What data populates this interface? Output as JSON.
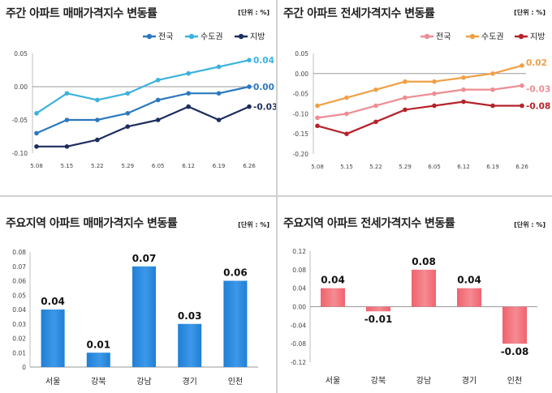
{
  "chart_data": [
    {
      "type": "line",
      "title": "주간 아파트 매매가격지수 변동률",
      "unit": "[단위 : %]",
      "categories": [
        "5.08",
        "5.15",
        "5.22",
        "5.29",
        "6.05",
        "6.12",
        "6.19",
        "6.26"
      ],
      "ylim": [
        -0.1,
        0.05
      ],
      "yticks": [
        "0.05",
        "0.00",
        "-0.05",
        "-0.10"
      ],
      "ytick_values": [
        0.05,
        0.0,
        -0.05,
        -0.1
      ],
      "series": [
        {
          "name": "전국",
          "color": "#2b78be",
          "values": [
            -0.07,
            -0.05,
            -0.05,
            -0.04,
            -0.02,
            -0.01,
            -0.01,
            0.0
          ],
          "end_label": "0.00"
        },
        {
          "name": "수도권",
          "color": "#3ab3dc",
          "values": [
            -0.04,
            -0.01,
            -0.02,
            -0.01,
            0.01,
            0.02,
            0.03,
            0.04
          ],
          "end_label": "0.04"
        },
        {
          "name": "지방",
          "color": "#1c2d5e",
          "values": [
            -0.09,
            -0.09,
            -0.08,
            -0.06,
            -0.05,
            -0.03,
            -0.05,
            -0.03
          ],
          "end_label": "-0.03"
        }
      ]
    },
    {
      "type": "line",
      "title": "주간 아파트 전세가격지수 변동률",
      "unit": "[단위 : %]",
      "categories": [
        "5.08",
        "5.15",
        "5.22",
        "5.29",
        "6.05",
        "6.12",
        "6.19",
        "6.26"
      ],
      "ylim": [
        -0.2,
        0.05
      ],
      "yticks": [
        "0.05",
        "0.00",
        "-0.05",
        "-0.10",
        "-0.15",
        "-0.20"
      ],
      "ytick_values": [
        0.05,
        0.0,
        -0.05,
        -0.1,
        -0.15,
        -0.2
      ],
      "series": [
        {
          "name": "전국",
          "color": "#ee8d93",
          "values": [
            -0.11,
            -0.1,
            -0.08,
            -0.06,
            -0.05,
            -0.04,
            -0.04,
            -0.03
          ],
          "end_label": "-0.03"
        },
        {
          "name": "수도권",
          "color": "#f0a046",
          "values": [
            -0.08,
            -0.06,
            -0.04,
            -0.02,
            -0.02,
            -0.01,
            0.0,
            0.02
          ],
          "end_label": "0.02"
        },
        {
          "name": "지방",
          "color": "#b5232a",
          "values": [
            -0.13,
            -0.15,
            -0.12,
            -0.09,
            -0.08,
            -0.07,
            -0.08,
            -0.08
          ],
          "end_label": "-0.08"
        }
      ]
    },
    {
      "type": "bar",
      "title": "주요지역 아파트 매매가격지수 변동률",
      "unit": "[단위 : %]",
      "categories": [
        "서울",
        "강북",
        "강남",
        "경기",
        "인천"
      ],
      "values": [
        0.04,
        0.01,
        0.07,
        0.03,
        0.06
      ],
      "value_labels": [
        "0.04",
        "0.01",
        "0.07",
        "0.03",
        "0.06"
      ],
      "ylim": [
        0,
        0.08
      ],
      "yticks": [
        "0.08",
        "0.07",
        "0.06",
        "0.05",
        "0.04",
        "0.03",
        "0.02",
        "0.01",
        "0"
      ],
      "ytick_values": [
        0.08,
        0.07,
        0.06,
        0.05,
        0.04,
        0.03,
        0.02,
        0.01,
        0
      ],
      "color": "#1f7fd6",
      "color_light": "#3d98e8"
    },
    {
      "type": "bar",
      "title": "주요지역 아파트 전세가격지수 변동률",
      "unit": "[단위 : %]",
      "categories": [
        "서울",
        "강북",
        "강남",
        "경기",
        "인천"
      ],
      "values": [
        0.04,
        -0.01,
        0.08,
        0.04,
        -0.08
      ],
      "value_labels": [
        "0.04",
        "-0.01",
        "0.08",
        "0.04",
        "-0.08"
      ],
      "ylim": [
        -0.12,
        0.12
      ],
      "yticks": [
        "0.12",
        "0.08",
        "0.04",
        "0.00",
        "-0.04",
        "-0.08",
        "-0.12"
      ],
      "ytick_values": [
        0.12,
        0.08,
        0.04,
        0.0,
        -0.04,
        -0.08,
        -0.12
      ],
      "color": "#f0636e",
      "color_light": "#f58b92"
    }
  ]
}
